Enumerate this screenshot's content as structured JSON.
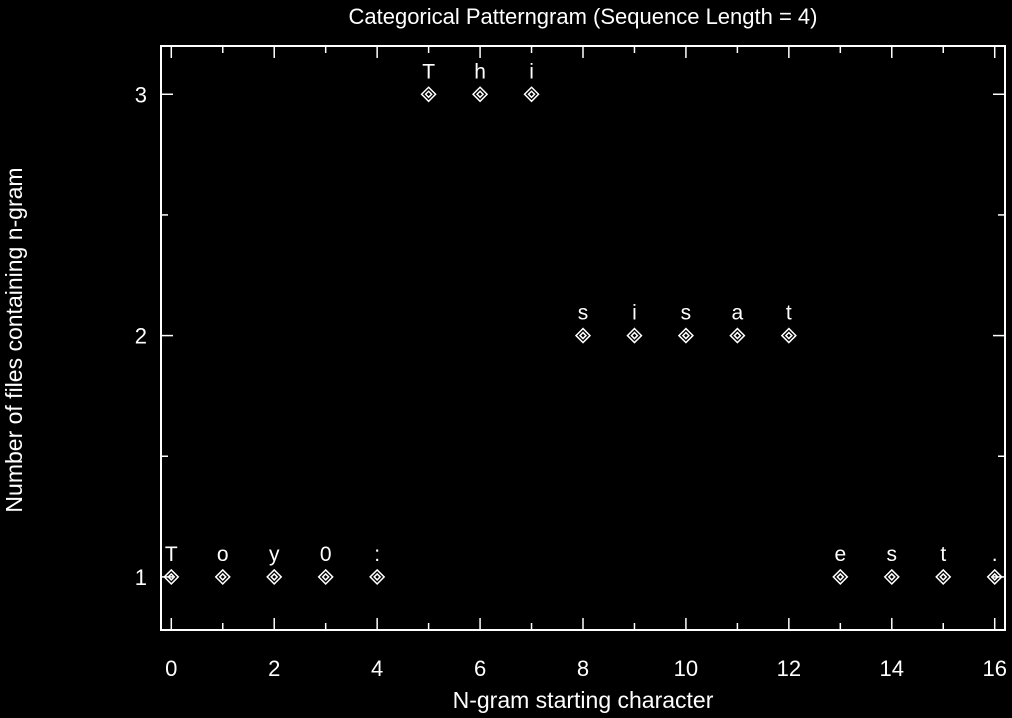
{
  "chart_data": {
    "type": "scatter",
    "title": "Categorical Patterngram (Sequence Length = 4)",
    "xlabel": "N-gram starting character",
    "ylabel": "Number of files containing n-gram",
    "xlim": [
      -0.2,
      16.2
    ],
    "ylim": [
      0.78,
      3.2
    ],
    "xticks": [
      0,
      2,
      4,
      6,
      8,
      10,
      12,
      14,
      16
    ],
    "xminor_ticks": [
      1,
      3,
      5,
      7,
      9,
      11,
      13,
      15
    ],
    "yticks": [
      1,
      2,
      3
    ],
    "yminor_ticks": [
      1.5,
      2.5
    ],
    "grid": false,
    "marker": "diamond",
    "colors": {
      "background": "#000000",
      "foreground": "#ffffff"
    },
    "points": [
      {
        "x": 0,
        "y": 1,
        "label": "T"
      },
      {
        "x": 1,
        "y": 1,
        "label": "o"
      },
      {
        "x": 2,
        "y": 1,
        "label": "y"
      },
      {
        "x": 3,
        "y": 1,
        "label": "0"
      },
      {
        "x": 4,
        "y": 1,
        "label": ":"
      },
      {
        "x": 5,
        "y": 3,
        "label": "T"
      },
      {
        "x": 6,
        "y": 3,
        "label": "h"
      },
      {
        "x": 7,
        "y": 3,
        "label": "i"
      },
      {
        "x": 8,
        "y": 2,
        "label": "s"
      },
      {
        "x": 9,
        "y": 2,
        "label": "i"
      },
      {
        "x": 10,
        "y": 2,
        "label": "s"
      },
      {
        "x": 11,
        "y": 2,
        "label": "a"
      },
      {
        "x": 12,
        "y": 2,
        "label": "t"
      },
      {
        "x": 13,
        "y": 1,
        "label": "e"
      },
      {
        "x": 14,
        "y": 1,
        "label": "s"
      },
      {
        "x": 15,
        "y": 1,
        "label": "t"
      },
      {
        "x": 16,
        "y": 1,
        "label": "."
      }
    ]
  }
}
